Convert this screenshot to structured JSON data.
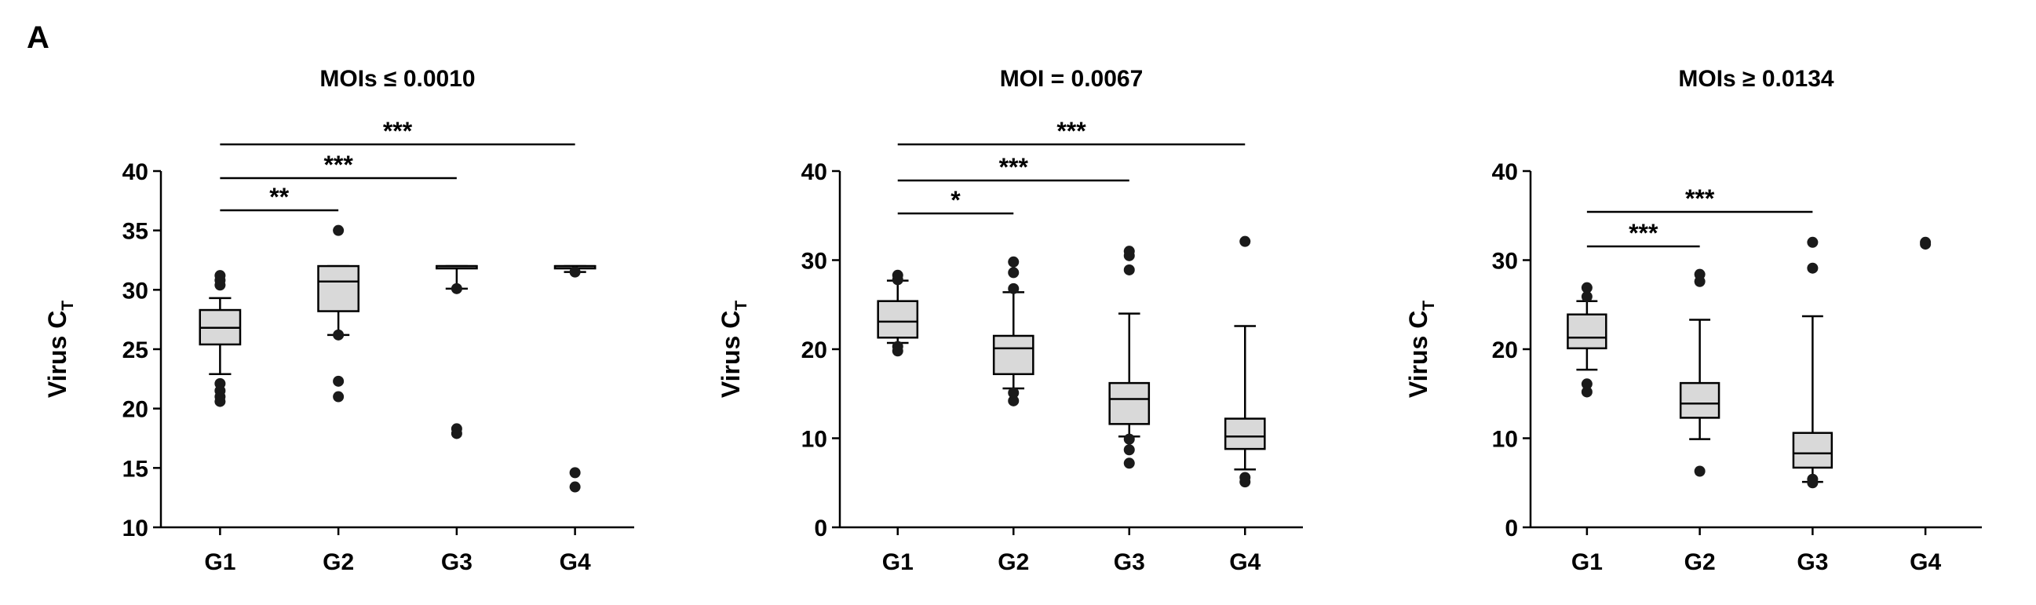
{
  "panel_label": "A",
  "chart_data": [
    {
      "type": "box",
      "title": "MOIs ≤ 0.0010",
      "ylabel": "Virus C",
      "ylabel_sub": "T",
      "ylim": [
        10,
        40
      ],
      "yticks": [
        10,
        15,
        20,
        25,
        30,
        35,
        40
      ],
      "categories": [
        "G1",
        "G2",
        "G3",
        "G4"
      ],
      "boxes": [
        {
          "name": "G1",
          "q1": 25.4,
          "median": 26.8,
          "q3": 28.3,
          "whisker_low": 22.9,
          "whisker_high": 29.3,
          "outliers": [
            20.6,
            21.0,
            21.5,
            22.1,
            30.4,
            30.8,
            31.2
          ]
        },
        {
          "name": "G2",
          "q1": 28.2,
          "median": 30.7,
          "q3": 32.0,
          "whisker_low": 26.2,
          "whisker_high": 32.0,
          "outliers": [
            21.0,
            22.3,
            26.2,
            35.0
          ]
        },
        {
          "name": "G3",
          "q1": 31.8,
          "median": 32.0,
          "q3": 32.0,
          "whisker_low": 30.1,
          "whisker_high": 32.0,
          "outliers": [
            17.9,
            18.3,
            30.1
          ]
        },
        {
          "name": "G4",
          "q1": 31.8,
          "median": 32.0,
          "q3": 32.0,
          "whisker_low": 31.5,
          "whisker_high": 32.0,
          "outliers": [
            13.4,
            14.6,
            31.5
          ]
        }
      ],
      "significance": [
        {
          "from": "G1",
          "to": "G2",
          "label": "**"
        },
        {
          "from": "G1",
          "to": "G3",
          "label": "***"
        },
        {
          "from": "G1",
          "to": "G4",
          "label": "***"
        }
      ]
    },
    {
      "type": "box",
      "title": "MOI = 0.0067",
      "ylabel": "Virus C",
      "ylabel_sub": "T",
      "ylim": [
        0,
        40
      ],
      "yticks": [
        0,
        10,
        20,
        30,
        40
      ],
      "categories": [
        "G1",
        "G2",
        "G3",
        "G4"
      ],
      "boxes": [
        {
          "name": "G1",
          "q1": 21.3,
          "median": 23.1,
          "q3": 25.4,
          "whisker_low": 20.7,
          "whisker_high": 27.7,
          "outliers": [
            19.8,
            20.3,
            27.8,
            28.3
          ]
        },
        {
          "name": "G2",
          "q1": 17.2,
          "median": 20.1,
          "q3": 21.5,
          "whisker_low": 15.6,
          "whisker_high": 26.4,
          "outliers": [
            14.2,
            15.1,
            26.8,
            28.6,
            29.8
          ]
        },
        {
          "name": "G3",
          "q1": 11.6,
          "median": 14.4,
          "q3": 16.2,
          "whisker_low": 10.2,
          "whisker_high": 24.0,
          "outliers": [
            7.2,
            8.7,
            9.9,
            28.9,
            30.5,
            31.0
          ]
        },
        {
          "name": "G4",
          "q1": 8.8,
          "median": 10.2,
          "q3": 12.2,
          "whisker_low": 6.5,
          "whisker_high": 22.6,
          "outliers": [
            5.1,
            5.6,
            32.1
          ]
        }
      ],
      "significance": [
        {
          "from": "G1",
          "to": "G2",
          "label": "*"
        },
        {
          "from": "G1",
          "to": "G3",
          "label": "***"
        },
        {
          "from": "G1",
          "to": "G4",
          "label": "***"
        }
      ]
    },
    {
      "type": "box",
      "title": "MOIs ≥ 0.0134",
      "ylabel": "Virus C",
      "ylabel_sub": "T",
      "ylim": [
        0,
        40
      ],
      "yticks": [
        0,
        10,
        20,
        30,
        40
      ],
      "categories": [
        "G1",
        "G2",
        "G3",
        "G4"
      ],
      "boxes": [
        {
          "name": "G1",
          "q1": 20.1,
          "median": 21.3,
          "q3": 23.9,
          "whisker_low": 17.7,
          "whisker_high": 25.4,
          "outliers": [
            15.2,
            16.1,
            25.9,
            26.9
          ]
        },
        {
          "name": "G2",
          "q1": 12.3,
          "median": 13.9,
          "q3": 16.2,
          "whisker_low": 9.9,
          "whisker_high": 23.3,
          "outliers": [
            6.3,
            27.6,
            28.4
          ]
        },
        {
          "name": "G3",
          "q1": 6.7,
          "median": 8.3,
          "q3": 10.6,
          "whisker_low": 5.1,
          "whisker_high": 23.7,
          "outliers": [
            5.0,
            5.4,
            29.1,
            32.0
          ]
        },
        {
          "name": "G4",
          "outliers": [
            31.8,
            32.0
          ]
        }
      ],
      "significance": [
        {
          "from": "G1",
          "to": "G2",
          "label": "***"
        },
        {
          "from": "G1",
          "to": "G3",
          "label": "***"
        }
      ]
    }
  ]
}
